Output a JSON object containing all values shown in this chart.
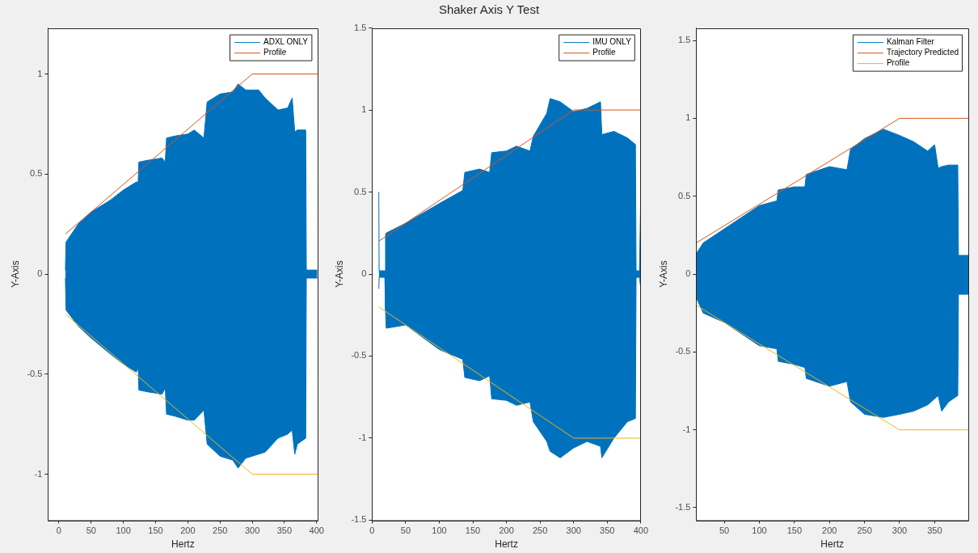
{
  "chart_data": [
    {
      "type": "line",
      "xlabel": "Hertz",
      "ylabel": "Y-Axis",
      "xlim": [
        -17,
        402
      ],
      "xticks": [
        0,
        50,
        100,
        150,
        200,
        250,
        300,
        350,
        400
      ],
      "ylim": [
        -1.23,
        1.23
      ],
      "yticks": [
        -1,
        -0.5,
        0,
        0.5,
        1
      ],
      "grid": false,
      "legend": "top right",
      "series": [
        {
          "type": "area",
          "name": "ADXL ONLY",
          "color": "#0072bd",
          "x": [
            10,
            11,
            30,
            50,
            80,
            100,
            120,
            123,
            124,
            140,
            160,
            165,
            167,
            180,
            200,
            210,
            225,
            230,
            250,
            270,
            278,
            290,
            310,
            320,
            340,
            355,
            362,
            366,
            370,
            383,
            384,
            401
          ],
          "values": [
            0.02,
            0.16,
            0.25,
            0.31,
            0.37,
            0.42,
            0.46,
            0.46,
            0.56,
            0.57,
            0.58,
            0.56,
            0.68,
            0.69,
            0.7,
            0.72,
            0.68,
            0.86,
            0.9,
            0.91,
            0.95,
            0.92,
            0.92,
            0.88,
            0.82,
            0.83,
            0.88,
            0.71,
            0.72,
            0.72,
            0.02,
            0.02
          ]
        },
        {
          "type": "area",
          "color": "#0072bd",
          "x": [
            10,
            11,
            30,
            50,
            80,
            100,
            120,
            123,
            124,
            140,
            160,
            165,
            167,
            180,
            200,
            210,
            225,
            230,
            250,
            270,
            278,
            290,
            310,
            320,
            340,
            355,
            362,
            366,
            370,
            383,
            384,
            401
          ],
          "values": [
            -0.02,
            -0.18,
            -0.26,
            -0.32,
            -0.4,
            -0.45,
            -0.49,
            -0.47,
            -0.58,
            -0.59,
            -0.6,
            -0.57,
            -0.7,
            -0.71,
            -0.73,
            -0.73,
            -0.68,
            -0.85,
            -0.91,
            -0.93,
            -0.97,
            -0.92,
            -0.9,
            -0.89,
            -0.82,
            -0.8,
            -0.78,
            -0.9,
            -0.85,
            -0.82,
            -0.02,
            -0.02
          ]
        },
        {
          "name": "Profile",
          "color": "#d95319",
          "x": [
            10,
            300,
            402
          ],
          "values": [
            0.2,
            1,
            1
          ]
        },
        {
          "color": "#edb120",
          "x": [
            10,
            300,
            402
          ],
          "values": [
            -0.2,
            -1,
            -1
          ]
        }
      ]
    },
    {
      "type": "line",
      "title": "Shaker Axis Y Test",
      "xlabel": "Hertz",
      "ylabel": "Y-Axis",
      "xlim": [
        0,
        400
      ],
      "xticks": [
        0,
        50,
        100,
        150,
        200,
        250,
        300,
        350,
        400
      ],
      "ylim": [
        -1.5,
        1.5
      ],
      "yticks": [
        -1.5,
        -1,
        -0.5,
        0,
        0.5,
        1,
        1.5
      ],
      "grid": false,
      "legend": "top right",
      "series": [
        {
          "type": "area",
          "name": "IMU ONLY",
          "color": "#0072bd",
          "x": [
            10,
            10.5,
            11,
            19,
            20,
            21,
            50,
            100,
            135,
            138,
            160,
            175,
            178,
            200,
            215,
            235,
            240,
            260,
            265,
            280,
            300,
            320,
            340,
            342,
            360,
            380,
            392,
            393,
            398,
            400
          ],
          "values": [
            0.5,
            0.02,
            0.02,
            0.02,
            0.24,
            0.25,
            0.31,
            0.43,
            0.51,
            0.62,
            0.64,
            0.62,
            0.74,
            0.75,
            0.78,
            0.75,
            0.84,
            0.98,
            1.07,
            1.05,
            0.99,
            1.01,
            1.05,
            0.85,
            0.87,
            0.83,
            0.79,
            0.02,
            0.02,
            0.5
          ]
        },
        {
          "type": "area",
          "color": "#0072bd",
          "x": [
            10,
            10.5,
            11,
            19,
            20,
            21,
            50,
            100,
            135,
            138,
            160,
            175,
            178,
            200,
            215,
            235,
            240,
            260,
            265,
            280,
            300,
            320,
            340,
            342,
            360,
            380,
            392,
            393,
            398,
            400
          ],
          "values": [
            -0.09,
            -0.02,
            -0.02,
            -0.02,
            -0.22,
            -0.33,
            -0.31,
            -0.46,
            -0.52,
            -0.63,
            -0.65,
            -0.62,
            -0.76,
            -0.77,
            -0.8,
            -0.78,
            -0.9,
            -1.02,
            -1.08,
            -1.12,
            -1.06,
            -1.02,
            -1.05,
            -1.12,
            -1.0,
            -0.9,
            -0.88,
            -0.02,
            -0.02,
            -0.09
          ]
        },
        {
          "name": "Profile",
          "color": "#d95319",
          "x": [
            10,
            300,
            400
          ],
          "values": [
            0.2,
            1,
            1
          ]
        },
        {
          "color": "#edb120",
          "x": [
            10,
            300,
            400
          ],
          "values": [
            -0.2,
            -1,
            -1
          ]
        }
      ]
    },
    {
      "type": "line",
      "xlabel": "Hertz",
      "ylabel": "Y-Axis",
      "xlim": [
        10,
        398
      ],
      "xticks": [
        50,
        100,
        150,
        200,
        250,
        300,
        350
      ],
      "ylim": [
        -1.58,
        1.58
      ],
      "yticks": [
        -1.5,
        -1,
        -0.5,
        0,
        0.5,
        1,
        1.5
      ],
      "grid": false,
      "legend": "top right",
      "series": [
        {
          "type": "area",
          "name": "Kalman Filter",
          "color": "#0072bd",
          "x": [
            10,
            20,
            50,
            100,
            125,
            127,
            150,
            165,
            167,
            200,
            225,
            230,
            250,
            277,
            300,
            320,
            340,
            350,
            355,
            360,
            370,
            383,
            384,
            398
          ],
          "values": [
            0.13,
            0.2,
            0.29,
            0.44,
            0.47,
            0.54,
            0.56,
            0.56,
            0.64,
            0.69,
            0.67,
            0.8,
            0.87,
            0.93,
            0.89,
            0.85,
            0.79,
            0.83,
            0.68,
            0.69,
            0.7,
            0.7,
            0.12,
            0.12
          ]
        },
        {
          "type": "area",
          "color": "#0072bd",
          "x": [
            10,
            20,
            50,
            100,
            125,
            127,
            150,
            165,
            167,
            200,
            225,
            230,
            250,
            277,
            300,
            320,
            340,
            350,
            355,
            360,
            370,
            383,
            384,
            398
          ],
          "values": [
            -0.15,
            -0.25,
            -0.31,
            -0.46,
            -0.48,
            -0.56,
            -0.58,
            -0.6,
            -0.67,
            -0.72,
            -0.69,
            -0.82,
            -0.9,
            -0.92,
            -0.9,
            -0.88,
            -0.84,
            -0.8,
            -0.78,
            -0.88,
            -0.82,
            -0.78,
            -0.13,
            -0.13
          ]
        },
        {
          "name": "Trajectory Predicted",
          "color": "#d95319",
          "x": [
            10,
            300,
            398
          ],
          "values": [
            0.2,
            1,
            1
          ]
        },
        {
          "name": "Profile",
          "color": "#edb120",
          "x": [
            10,
            300,
            398
          ],
          "values": [
            -0.2,
            -1,
            -1
          ]
        }
      ]
    }
  ]
}
